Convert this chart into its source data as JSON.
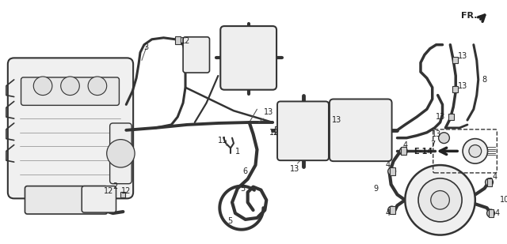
{
  "bg_color": "#ffffff",
  "fig_width": 6.4,
  "fig_height": 3.09,
  "dpi": 100,
  "diagram_color": "#222222",
  "line_color": "#333333"
}
